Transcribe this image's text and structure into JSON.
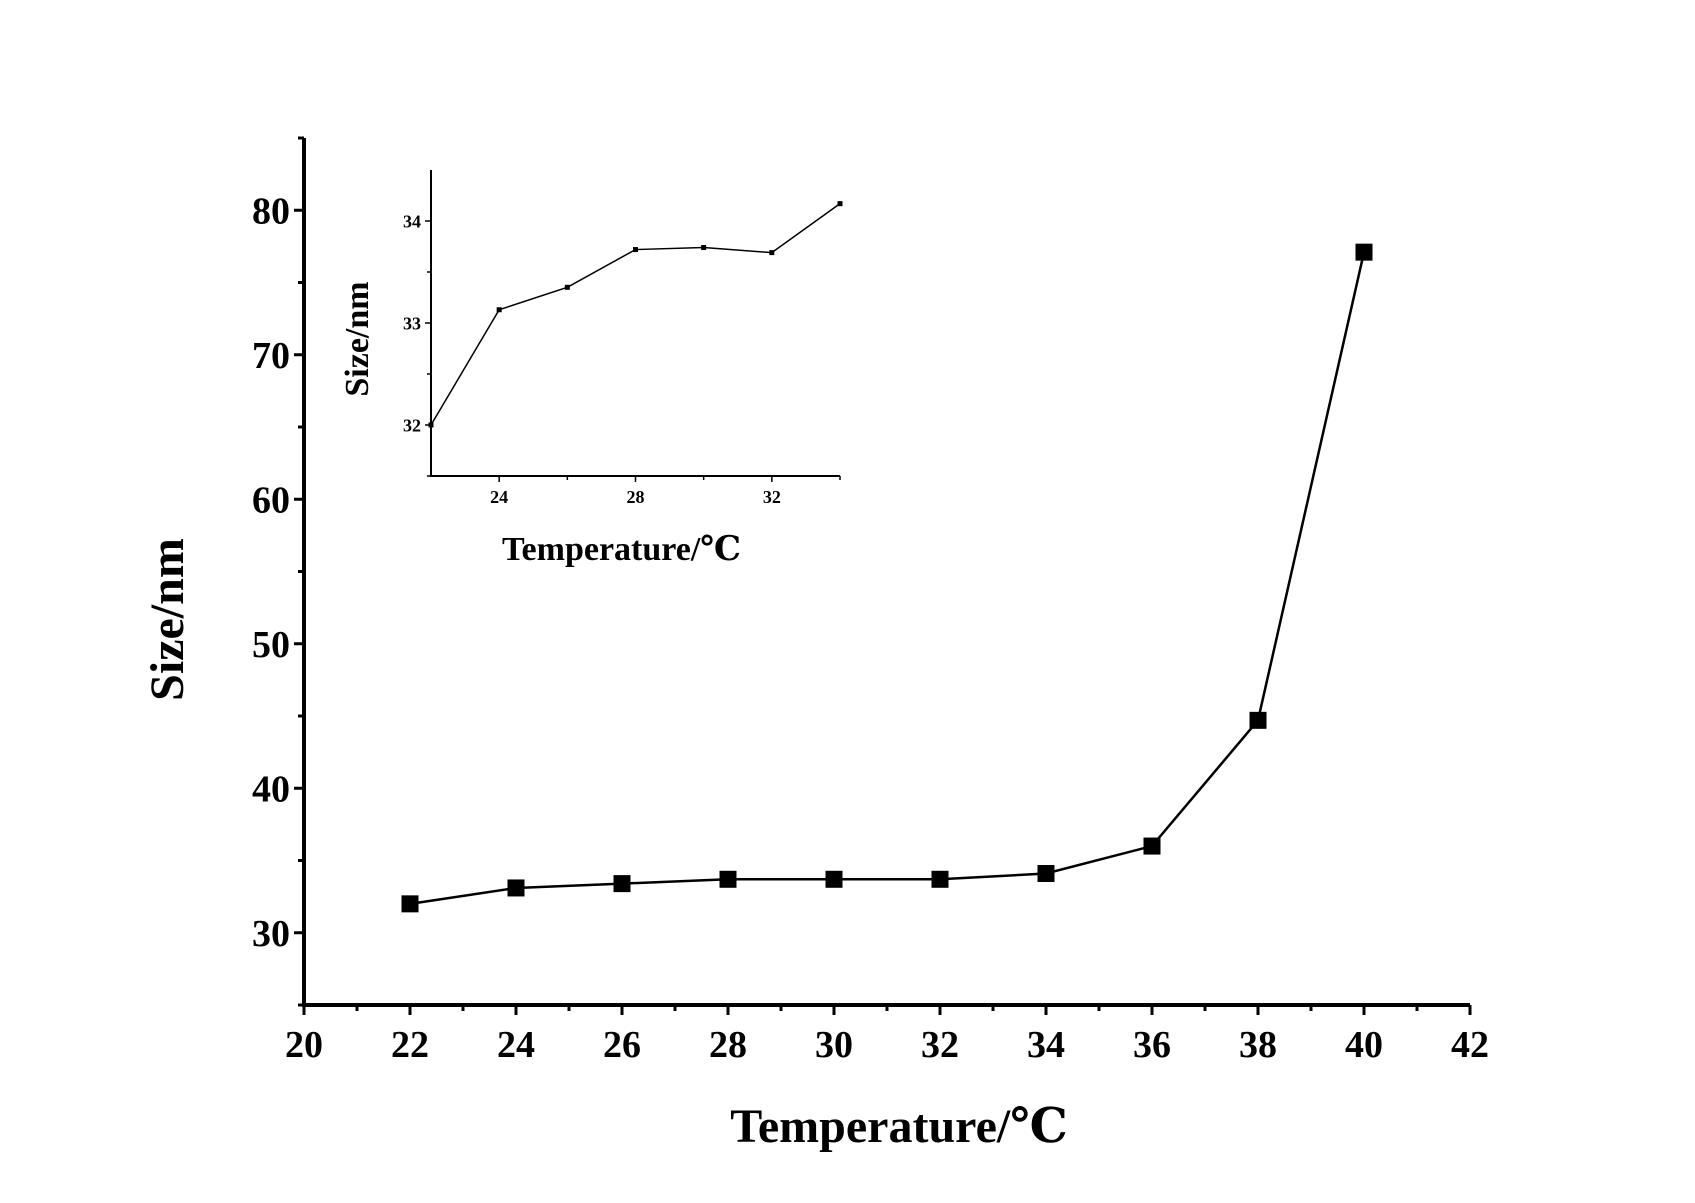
{
  "chart_data": [
    {
      "id": "main",
      "type": "line",
      "title": "",
      "xlabel": "Temperature/℃",
      "ylabel": "Size/nm",
      "xlim": [
        20,
        42
      ],
      "ylim": [
        25,
        85
      ],
      "xticks": [
        20,
        22,
        24,
        26,
        28,
        30,
        32,
        34,
        36,
        38,
        40,
        42
      ],
      "xminor": [
        21,
        23,
        25,
        27,
        29,
        31,
        33,
        35,
        37,
        39,
        41
      ],
      "yticks": [
        30,
        40,
        50,
        60,
        70,
        80
      ],
      "yminor": [
        25,
        35,
        45,
        55,
        65,
        75,
        85
      ],
      "grid": false,
      "marker": "square",
      "series": [
        {
          "name": "Size",
          "x": [
            22,
            24,
            26,
            28,
            30,
            32,
            34,
            36,
            38,
            40
          ],
          "y": [
            32.0,
            33.1,
            33.4,
            33.7,
            33.7,
            33.7,
            34.1,
            36.0,
            44.7,
            77.1
          ]
        }
      ]
    },
    {
      "id": "inset",
      "type": "line",
      "title": "",
      "xlabel": "Temperature/℃",
      "ylabel": "Size/nm",
      "xlim": [
        22,
        34
      ],
      "ylim": [
        31.5,
        34.5
      ],
      "xticks": [
        24,
        28,
        32
      ],
      "xminor": [
        26,
        30,
        34
      ],
      "yticks": [
        32,
        33,
        34
      ],
      "yminor": [
        31.5,
        32.5,
        33.5
      ],
      "grid": false,
      "marker": "small-square",
      "series": [
        {
          "name": "Size",
          "x": [
            22,
            24,
            26,
            28,
            30,
            32,
            34
          ],
          "y": [
            32.0,
            33.13,
            33.35,
            33.72,
            33.74,
            33.69,
            34.17
          ]
        }
      ]
    }
  ]
}
